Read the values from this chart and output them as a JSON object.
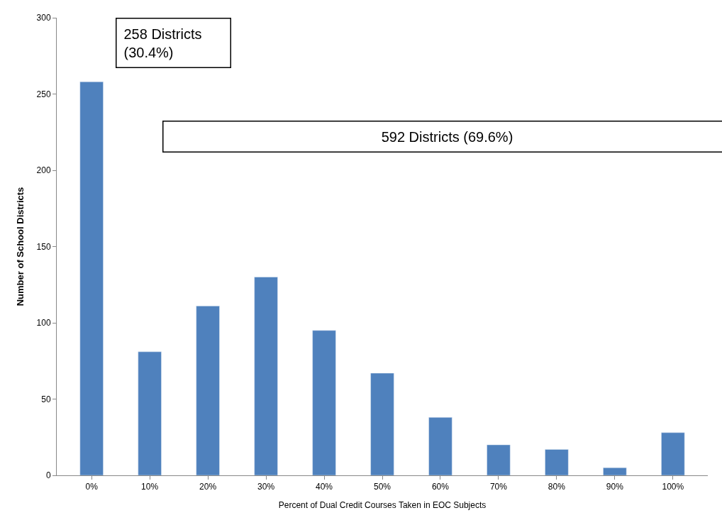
{
  "chart_data": {
    "type": "bar",
    "xlabel": "Percent of Dual Credit Courses Taken in EOC Subjects",
    "ylabel": "Number of School Districts",
    "categories": [
      "0%",
      "10%",
      "20%",
      "30%",
      "40%",
      "50%",
      "60%",
      "70%",
      "80%",
      "90%",
      "100%"
    ],
    "values": [
      258,
      81,
      111,
      130,
      95,
      67,
      38,
      20,
      17,
      5,
      28
    ],
    "color": "#4f81bd",
    "ylim": [
      0,
      300
    ],
    "yticks": [
      0,
      50,
      100,
      150,
      200,
      250,
      300
    ],
    "annotations": [
      "258 Districts (30.4%)",
      "592 Districts (69.6%)"
    ]
  }
}
